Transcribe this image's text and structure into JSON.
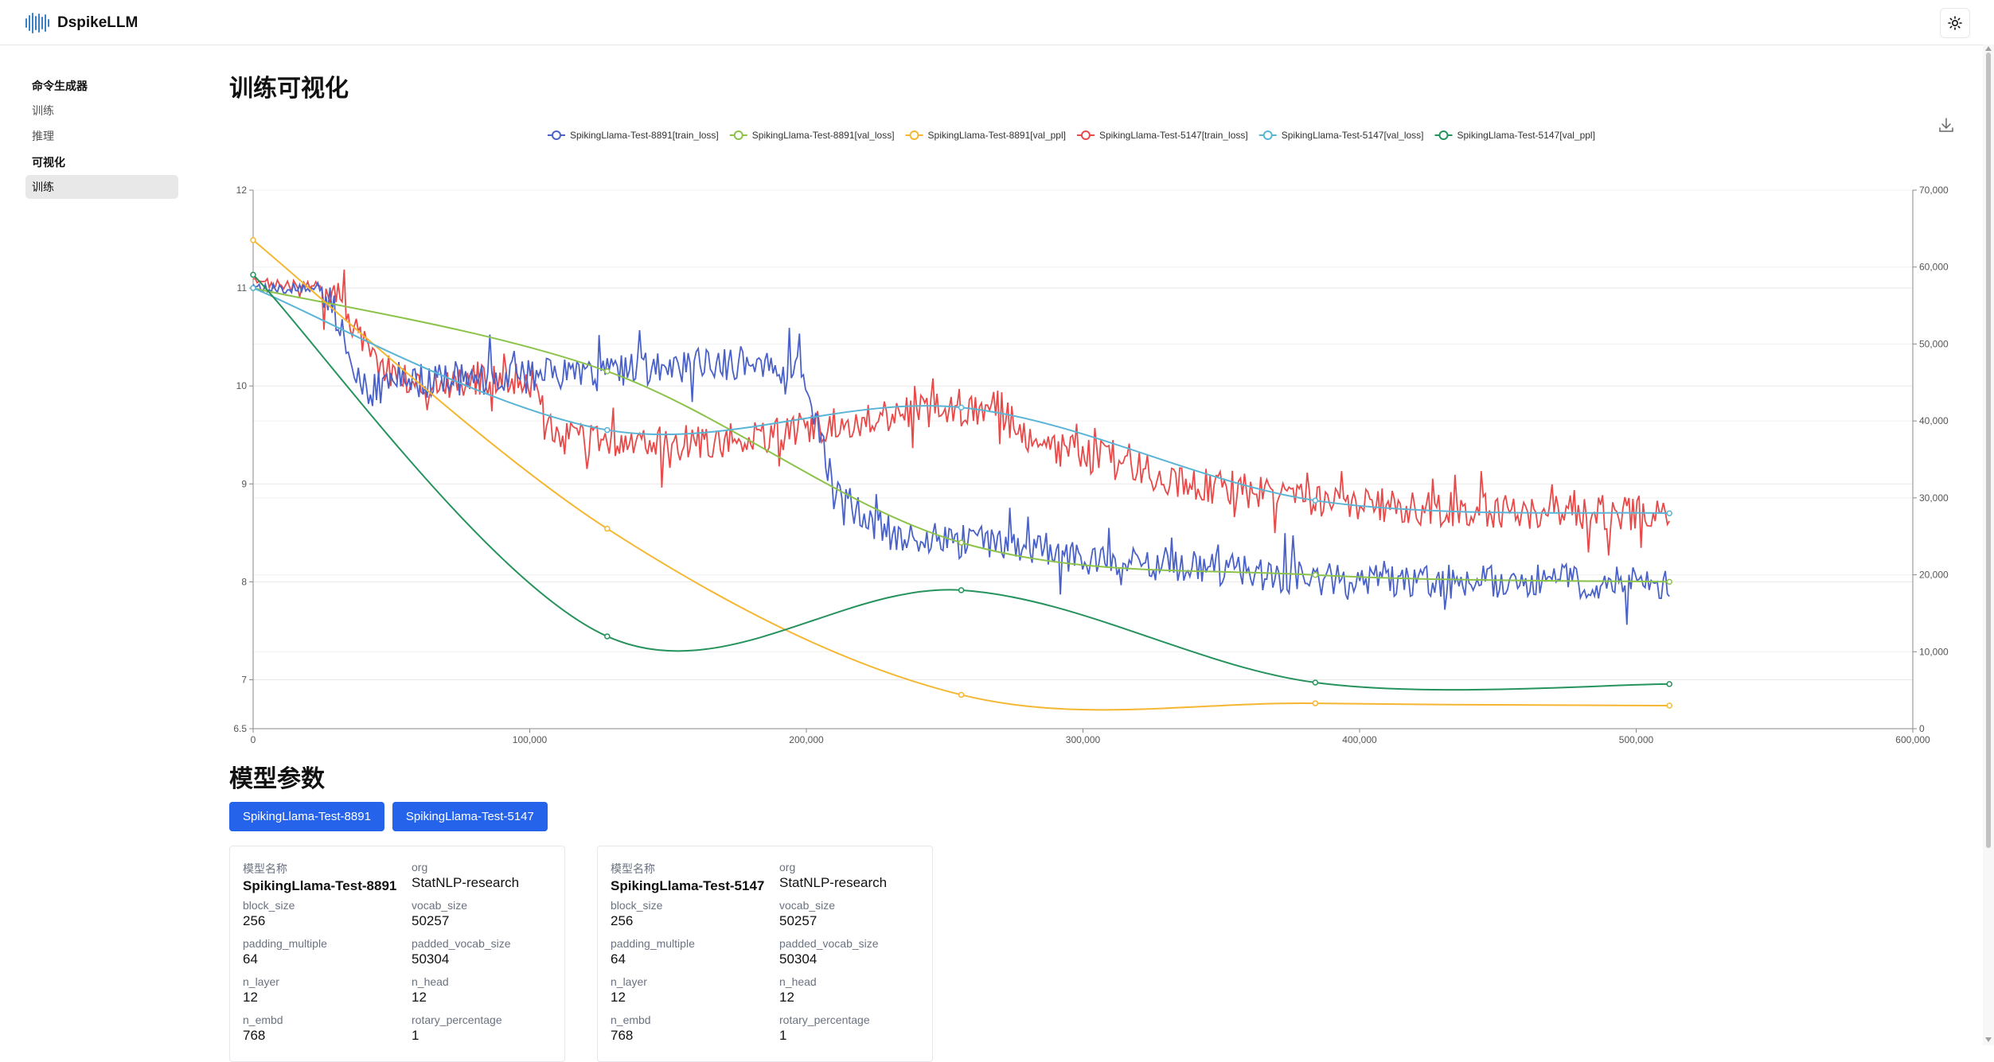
{
  "app": {
    "name": "DspikeLLM"
  },
  "sidebar": {
    "groups": [
      {
        "label": "命令生成器",
        "items": [
          "训练",
          "推理"
        ]
      },
      {
        "label": "可视化",
        "items": [
          "训练"
        ]
      }
    ]
  },
  "page_title": "训练可视化",
  "section_title": "模型参数",
  "model_tabs": [
    "SpikingLlama-Test-8891",
    "SpikingLlama-Test-5147"
  ],
  "colors": {
    "blue": "#4a62c8",
    "lightgreen": "#8bc34a",
    "yellow": "#f5b731",
    "red": "#e84a4a",
    "skyblue": "#5ab4d6",
    "green": "#26935d",
    "button": "#2563eb"
  },
  "chart_data": {
    "type": "line",
    "legend_position": "top-center",
    "series": [
      {
        "name": "SpikingLlama-Test-8891[train_loss]",
        "color": "#4a62c8",
        "axis": "left",
        "noisy": true
      },
      {
        "name": "SpikingLlama-Test-8891[val_loss]",
        "color": "#8bc34a",
        "axis": "left",
        "x": [
          0,
          128000,
          256000,
          384000,
          512000
        ],
        "y": [
          11.0,
          10.15,
          8.4,
          8.07,
          8.0
        ]
      },
      {
        "name": "SpikingLlama-Test-8891[val_ppl]",
        "color": "#f5b731",
        "axis": "right",
        "x": [
          0,
          128000,
          256000,
          384000,
          512000
        ],
        "y": [
          63500,
          26000,
          4400,
          3300,
          3000
        ]
      },
      {
        "name": "SpikingLlama-Test-5147[train_loss]",
        "color": "#e84a4a",
        "axis": "left",
        "noisy": true
      },
      {
        "name": "SpikingLlama-Test-5147[val_loss]",
        "color": "#5ab4d6",
        "axis": "left",
        "x": [
          0,
          128000,
          256000,
          384000,
          512000
        ],
        "y": [
          11.0,
          9.55,
          9.78,
          8.83,
          8.7
        ]
      },
      {
        "name": "SpikingLlama-Test-5147[val_ppl]",
        "color": "#26935d",
        "axis": "right",
        "x": [
          0,
          128000,
          256000,
          384000,
          512000
        ],
        "y": [
          59000,
          12000,
          18000,
          6000,
          5800
        ]
      }
    ],
    "train_loss_8891": {
      "x": [
        0,
        25000,
        32000,
        40000,
        60000,
        90000,
        120000,
        150000,
        180000,
        200000,
        210000,
        230000,
        260000,
        300000,
        340000,
        380000,
        420000,
        460000,
        512000
      ],
      "y": [
        11.0,
        11.0,
        10.6,
        9.95,
        10.05,
        10.1,
        10.15,
        10.2,
        10.25,
        10.1,
        8.9,
        8.5,
        8.4,
        8.25,
        8.15,
        8.05,
        8.0,
        8.0,
        8.0
      ],
      "noise": 0.18
    },
    "train_loss_5147": {
      "x": [
        0,
        30000,
        42000,
        60000,
        90000,
        100000,
        110000,
        140000,
        180000,
        210000,
        240000,
        270000,
        280000,
        300000,
        340000,
        380000,
        420000,
        460000,
        512000
      ],
      "y": [
        11.05,
        11.0,
        10.3,
        10.0,
        10.1,
        10.05,
        9.45,
        9.4,
        9.45,
        9.6,
        9.75,
        9.78,
        9.4,
        9.3,
        9.0,
        8.85,
        8.75,
        8.72,
        8.7
      ],
      "noise": 0.18
    },
    "x_axis": {
      "min": 0,
      "max": 600000,
      "ticks": [
        "0",
        "100,000",
        "200,000",
        "300,000",
        "400,000",
        "500,000",
        "600,000"
      ]
    },
    "y_left": {
      "min": 6.5,
      "max": 12,
      "ticks": [
        "6.5",
        "7",
        "8",
        "9",
        "10",
        "11",
        "12"
      ]
    },
    "y_right": {
      "min": 0,
      "max": 70000,
      "ticks": [
        "0",
        "10,000",
        "20,000",
        "30,000",
        "40,000",
        "50,000",
        "60,000",
        "70,000"
      ]
    },
    "grid": true
  },
  "cards": [
    {
      "fields": [
        {
          "k": "模型名称",
          "v": "SpikingLlama-Test-8891",
          "bold": true
        },
        {
          "k": "org",
          "v": "StatNLP-research"
        },
        {
          "k": "block_size",
          "v": "256"
        },
        {
          "k": "vocab_size",
          "v": "50257"
        },
        {
          "k": "padding_multiple",
          "v": "64"
        },
        {
          "k": "padded_vocab_size",
          "v": "50304"
        },
        {
          "k": "n_layer",
          "v": "12"
        },
        {
          "k": "n_head",
          "v": "12"
        },
        {
          "k": "n_embd",
          "v": "768"
        },
        {
          "k": "rotary_percentage",
          "v": "1"
        }
      ]
    },
    {
      "fields": [
        {
          "k": "模型名称",
          "v": "SpikingLlama-Test-5147",
          "bold": true
        },
        {
          "k": "org",
          "v": "StatNLP-research"
        },
        {
          "k": "block_size",
          "v": "256"
        },
        {
          "k": "vocab_size",
          "v": "50257"
        },
        {
          "k": "padding_multiple",
          "v": "64"
        },
        {
          "k": "padded_vocab_size",
          "v": "50304"
        },
        {
          "k": "n_layer",
          "v": "12"
        },
        {
          "k": "n_head",
          "v": "12"
        },
        {
          "k": "n_embd",
          "v": "768"
        },
        {
          "k": "rotary_percentage",
          "v": "1"
        }
      ]
    }
  ]
}
